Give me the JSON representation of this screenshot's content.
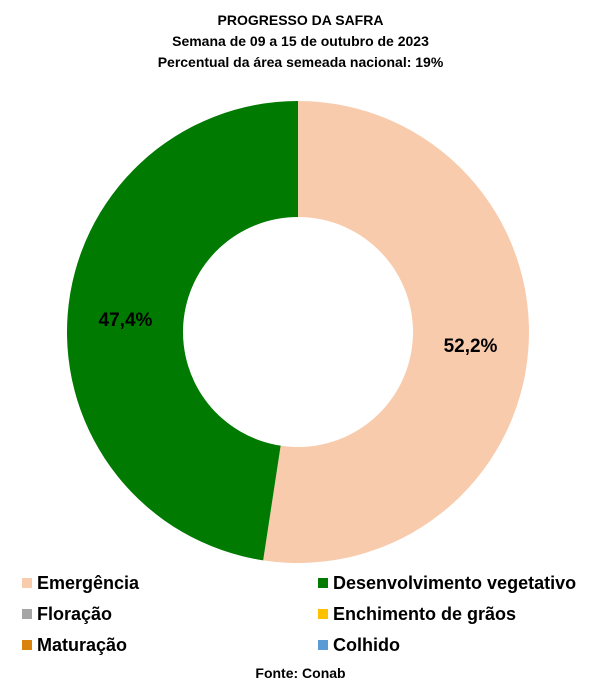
{
  "chart_data": {
    "type": "pie",
    "title": "PROGRESSO DA SAFRA",
    "subtitle_lines": [
      "Semana de  09 a 15 de outubro de 2023",
      "Percentual da área semeada nacional: 19%"
    ],
    "categories": [
      "Emergência",
      "Desenvolvimento vegetativo",
      "Floração",
      "Enchimento de grãos",
      "Maturação",
      "Colhido"
    ],
    "values": [
      52.2,
      47.4,
      0,
      0,
      0,
      0
    ],
    "value_labels": [
      "52,2%",
      "47,4%",
      "",
      "",
      "",
      ""
    ],
    "colors": [
      "#F8CBAD",
      "#007A00",
      "#A5A5A5",
      "#FFC000",
      "#D9820C",
      "#5B9BD5"
    ],
    "donut": true,
    "legend_position": "bottom"
  },
  "source": "Fonte: Conab"
}
